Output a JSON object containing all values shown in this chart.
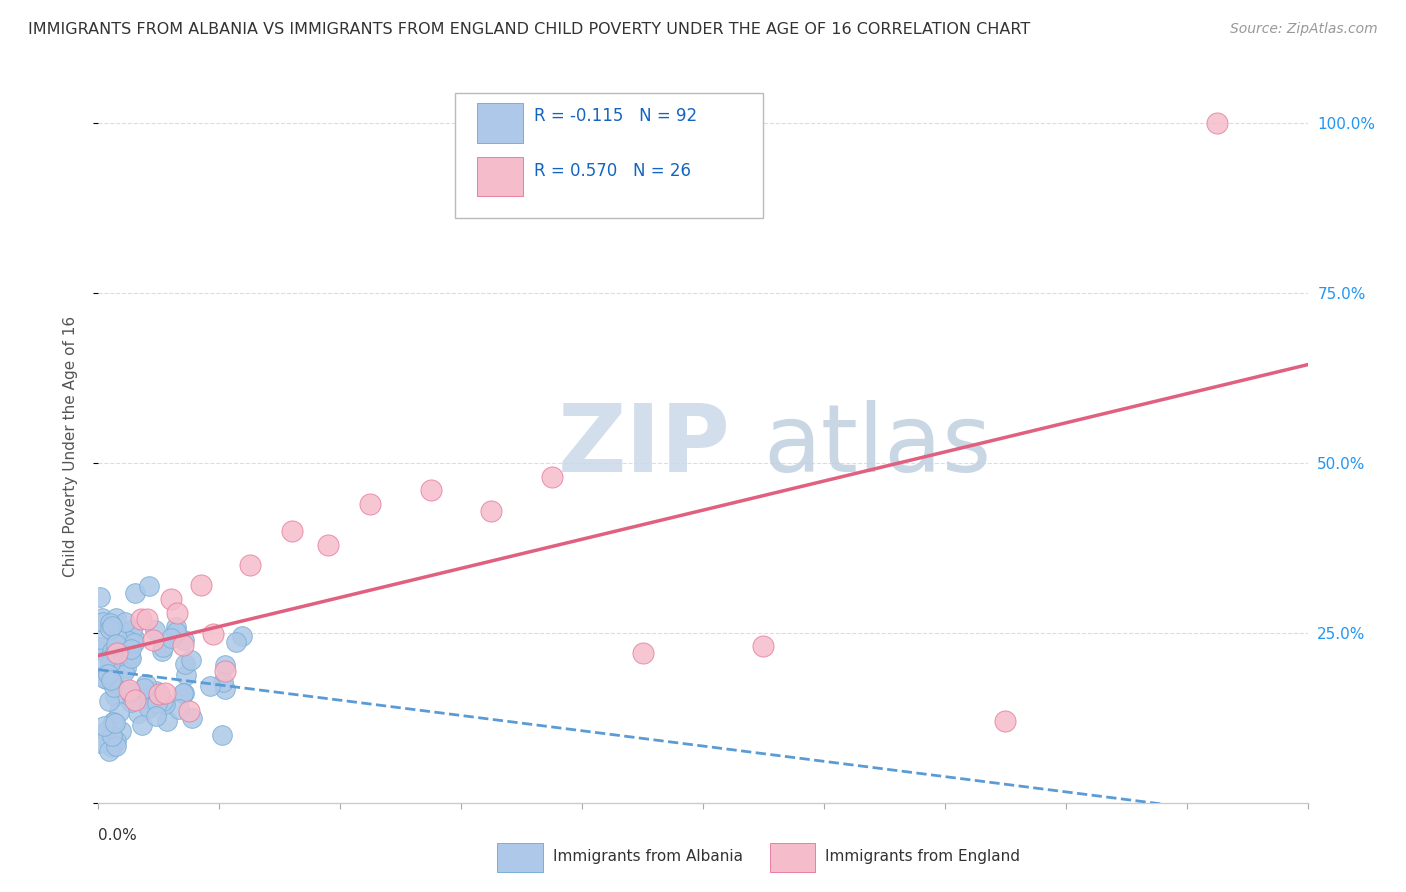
{
  "title": "IMMIGRANTS FROM ALBANIA VS IMMIGRANTS FROM ENGLAND CHILD POVERTY UNDER THE AGE OF 16 CORRELATION CHART",
  "source": "Source: ZipAtlas.com",
  "ylabel": "Child Poverty Under the Age of 16",
  "albania_color": "#adc8e8",
  "albania_edge": "#7aafd4",
  "england_color": "#f5bccb",
  "england_edge": "#e87fa0",
  "albania_R": -0.115,
  "albania_N": 92,
  "england_R": 0.57,
  "england_N": 26,
  "watermark_zip": "ZIP",
  "watermark_atlas": "atlas",
  "watermark_color_zip": "#ccd8ea",
  "watermark_color_atlas": "#c8d8e8",
  "background_color": "#ffffff",
  "grid_color": "#dddddd",
  "xlim": [
    0.0,
    0.2
  ],
  "ylim": [
    0.0,
    1.05
  ],
  "albania_trend_color": "#5b9bd5",
  "england_trend_color": "#e06080",
  "title_fontsize": 11.5,
  "source_fontsize": 10,
  "tick_label_fontsize": 11,
  "legend_fontsize": 12
}
